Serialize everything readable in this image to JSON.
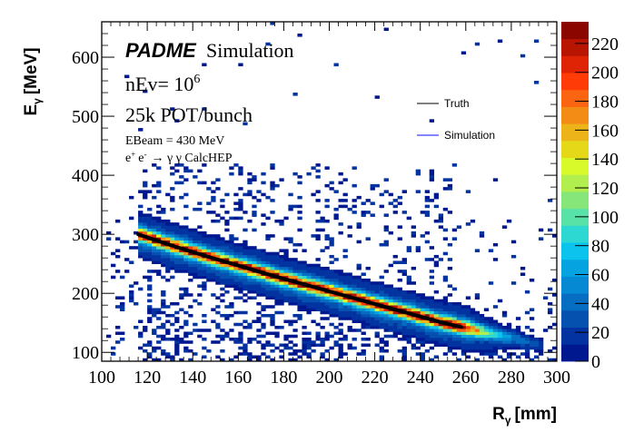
{
  "chart_data": {
    "type": "heatmap",
    "title": "",
    "xlabel": "R",
    "xlabel_sub": "γ",
    "xlabel_unit": "[mm]",
    "ylabel": "E",
    "ylabel_sub": "γ",
    "ylabel_unit": "[MeV]",
    "xlim": [
      100,
      300
    ],
    "ylim": [
      85,
      660
    ],
    "x_ticks": [
      100,
      120,
      140,
      160,
      180,
      200,
      220,
      240,
      260,
      280,
      300
    ],
    "y_ticks": [
      100,
      200,
      300,
      400,
      500,
      600
    ],
    "colorbar": {
      "range": [
        0,
        235
      ],
      "ticks": [
        0,
        20,
        40,
        60,
        80,
        100,
        120,
        140,
        160,
        180,
        200,
        220
      ],
      "palette": [
        "#00188f",
        "#0233a0",
        "#0451b0",
        "#056dc2",
        "#0689d3",
        "#05a3e0",
        "#0cc3ee",
        "#2ed8d2",
        "#58e2a8",
        "#86e67a",
        "#b2ef4e",
        "#d8f92a",
        "#e4d818",
        "#ecb418",
        "#f28c14",
        "#fb6410",
        "#ff3c08",
        "#de2404",
        "#b81402",
        "#8c0600"
      ]
    },
    "annotations": {
      "brand": "PADME",
      "brand_suffix": "Simulation",
      "nev_prefix": "nEv= 10",
      "nev_exp": "6",
      "pot": "25k POT/bunch",
      "ebeam": "EBeam = 430 MeV",
      "process_lhs_e1": "e",
      "process_lhs_e1_sup": "+",
      "process_lhs_e2": "e",
      "process_lhs_e2_sup": "-",
      "process_rhs": "→ γ γ CalcHEP"
    },
    "legend": {
      "position": "top-right",
      "entries": [
        {
          "label": "Truth",
          "color": "#000000"
        },
        {
          "label": "Simulation",
          "color": "#0000ff"
        }
      ]
    },
    "series": [
      {
        "name": "Truth",
        "x": [
          116,
          130,
          145,
          160,
          175,
          190,
          205,
          220,
          235,
          250,
          258
        ],
        "y": [
          300,
          282,
          264,
          247,
          230,
          214,
          198,
          182,
          166,
          150,
          143
        ]
      }
    ],
    "signal_band": {
      "x_range": [
        116,
        258
      ],
      "core_width_mev": 20,
      "halo_width_mev": 40
    },
    "background_region": {
      "x_range": [
        116,
        258
      ],
      "y_range": [
        85,
        420
      ]
    }
  }
}
